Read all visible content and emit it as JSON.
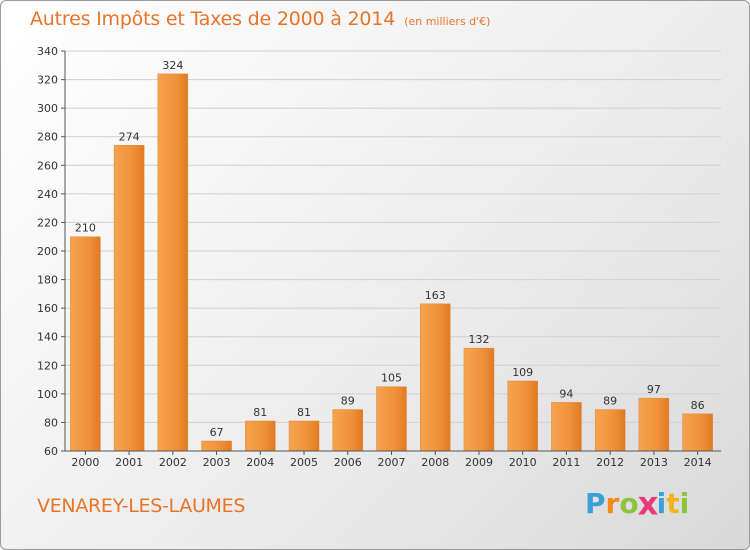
{
  "chart_data": {
    "type": "bar",
    "title": "Autres Impôts et Taxes de 2000 à 2014",
    "subtitle": "(en milliers d'€)",
    "categories": [
      "2000",
      "2001",
      "2002",
      "2003",
      "2004",
      "2005",
      "2006",
      "2007",
      "2008",
      "2009",
      "2010",
      "2011",
      "2012",
      "2013",
      "2014"
    ],
    "values": [
      210,
      274,
      324,
      67,
      81,
      81,
      89,
      105,
      163,
      132,
      109,
      94,
      89,
      97,
      86
    ],
    "ylim": [
      60,
      340
    ],
    "yticks": [
      60,
      80,
      100,
      120,
      140,
      160,
      180,
      200,
      220,
      240,
      260,
      280,
      300,
      320,
      340
    ],
    "grid": true,
    "bar_color": "#f0923a"
  },
  "footer": {
    "city": "VENAREY-LES-LAUMES",
    "logo_letters": [
      "P",
      "r",
      "o",
      "x",
      "i",
      "t",
      "i"
    ],
    "logo_colors": [
      "#3aa0d8",
      "#f08a1c",
      "#8cc43c",
      "#e83a7a",
      "#3aa0d8",
      "#f0b41c",
      "#8cc43c"
    ]
  }
}
